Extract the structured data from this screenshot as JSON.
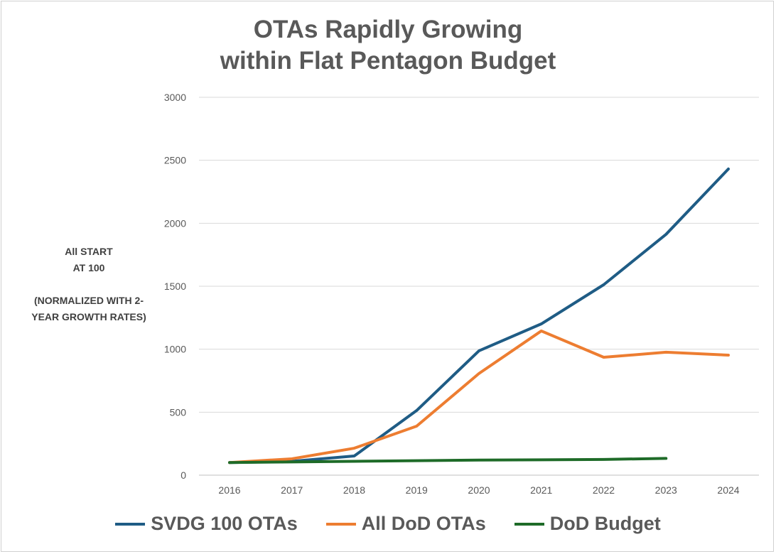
{
  "chart_data": {
    "type": "line",
    "title_lines": [
      "OTAs Rapidly Growing",
      "within Flat Pentagon Budget"
    ],
    "ylabel_lines": [
      "All START",
      "AT 100",
      "",
      "(NORMALIZED WITH 2-",
      "YEAR GROWTH RATES)"
    ],
    "xlabel": "",
    "x": [
      "2016",
      "2017",
      "2018",
      "2019",
      "2020",
      "2021",
      "2022",
      "2023",
      "2024"
    ],
    "ylim": [
      0,
      3000
    ],
    "yticks": [
      0,
      500,
      1000,
      1500,
      2000,
      2500,
      3000
    ],
    "grid": true,
    "legend_position": "bottom",
    "series": [
      {
        "name": "SVDG 100 OTAs",
        "color": "#1f5c85",
        "values": [
          100,
          110,
          152,
          513,
          987,
          1201,
          1512,
          1912,
          2431
        ]
      },
      {
        "name": "All DoD OTAs",
        "color": "#ed7d31",
        "values": [
          100,
          130,
          214,
          389,
          807,
          1145,
          936,
          976,
          953
        ]
      },
      {
        "name": "DoD Budget",
        "color": "#1e6b28",
        "values": [
          100,
          105,
          110,
          115,
          120,
          122,
          125,
          133,
          null
        ]
      }
    ]
  }
}
